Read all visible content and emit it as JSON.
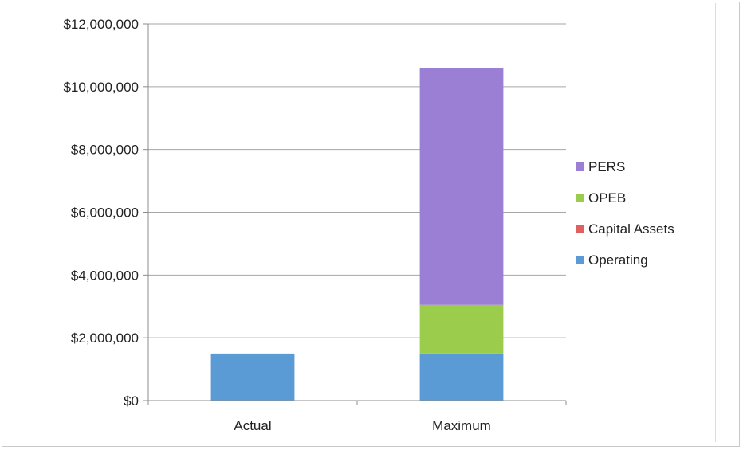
{
  "chart_data": {
    "type": "bar",
    "stacked": true,
    "categories": [
      "Actual",
      "Maximum"
    ],
    "series": [
      {
        "name": "Operating",
        "color": "#5b9bd5",
        "values": [
          1500000,
          1500000
        ]
      },
      {
        "name": "Capital Assets",
        "color": "#e06060",
        "values": [
          0,
          0
        ]
      },
      {
        "name": "OPEB",
        "color": "#9bcc4b",
        "values": [
          0,
          1550000
        ]
      },
      {
        "name": "PERS",
        "color": "#9b7fd4",
        "values": [
          0,
          7550000
        ]
      }
    ],
    "ylim": [
      0,
      12000000
    ],
    "yticks": [
      0,
      2000000,
      4000000,
      6000000,
      8000000,
      10000000,
      12000000
    ],
    "ytick_labels": [
      "$0",
      "$2,000,000",
      "$4,000,000",
      "$6,000,000",
      "$8,000,000",
      "$10,000,000",
      "$12,000,000"
    ],
    "legend_position": "right",
    "legend_order": [
      "PERS",
      "OPEB",
      "Capital Assets",
      "Operating"
    ],
    "grid": true,
    "gridline_color": "#a6a6a6"
  }
}
